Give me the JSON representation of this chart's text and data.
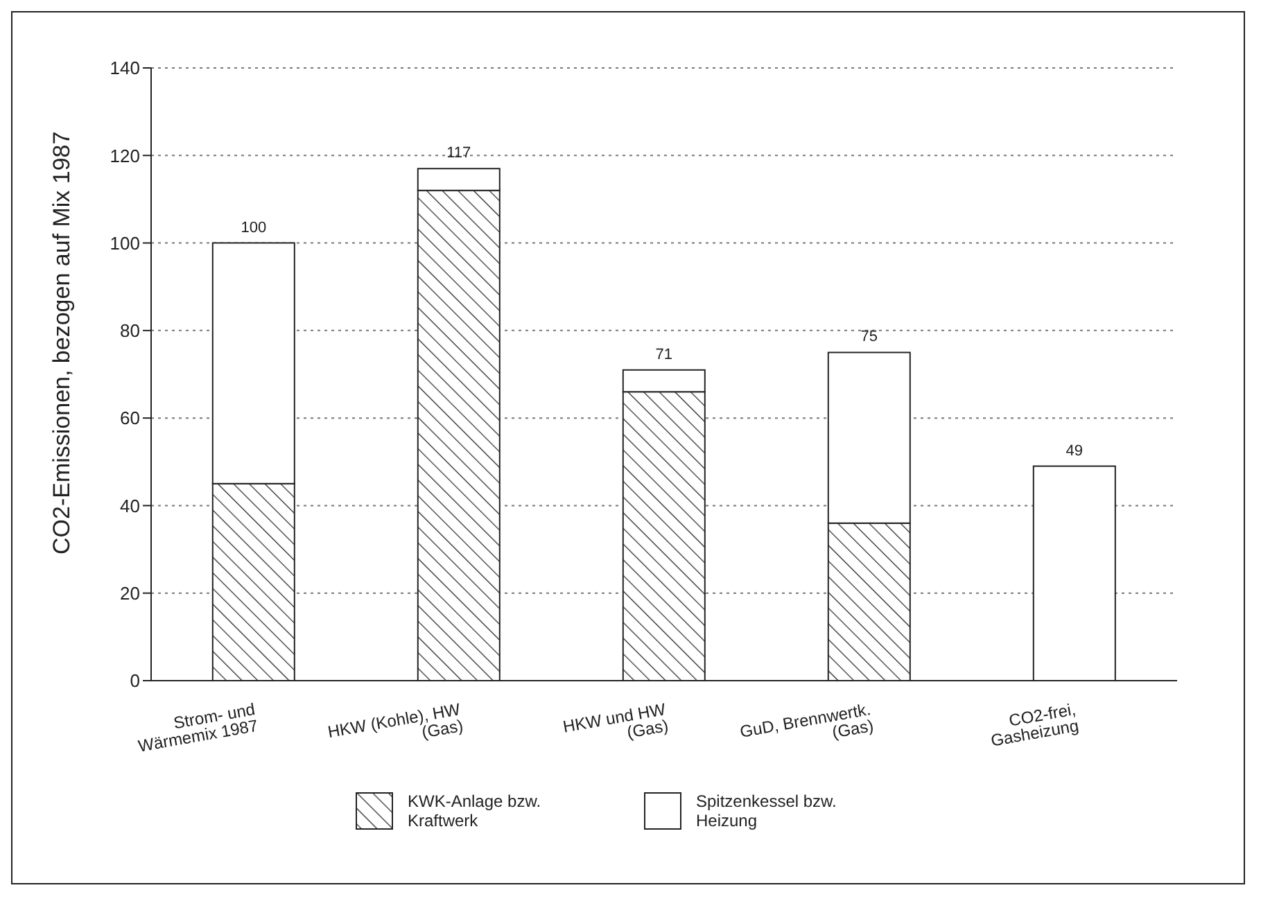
{
  "chart_data": {
    "type": "bar",
    "stacked": true,
    "ylabel": "CO2-Emissionen, bezogen auf Mix 1987",
    "categories": [
      "Strom- und Wärmemix 1987",
      "HKW (Kohle), HW (Gas)",
      "HKW und HW (Gas)",
      "GuD, Brennwertk. (Gas)",
      "CO2-frei, Gasheizung"
    ],
    "series": [
      {
        "name": "KWK-Anlage bzw. Kraftwerk",
        "color": "#222222",
        "values": [
          45,
          112,
          66,
          36,
          0
        ]
      },
      {
        "name": "Spitzenkessel bzw. Heizung",
        "color": "#ffffff",
        "values": [
          55,
          5,
          5,
          39,
          49
        ]
      }
    ],
    "totals": [
      "100",
      "117",
      "71",
      "75",
      "49"
    ],
    "ylim": [
      0,
      140
    ],
    "yticks": [
      0,
      20,
      40,
      60,
      80,
      100,
      120,
      140
    ],
    "grid": "y",
    "legend": "bottom"
  }
}
